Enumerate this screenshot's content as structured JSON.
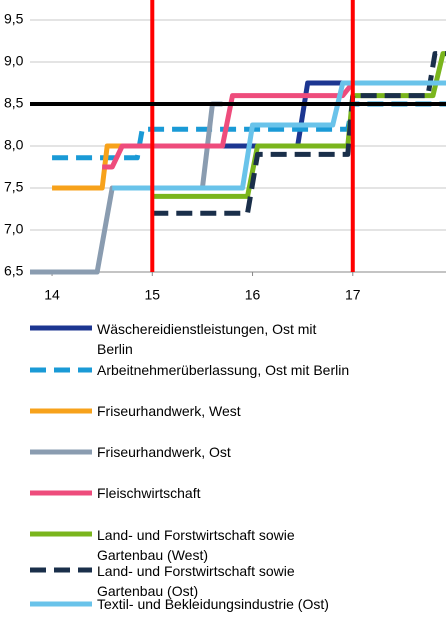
{
  "chart_data": {
    "type": "line",
    "xlim": [
      13.78,
      17.93
    ],
    "xticks": [
      14,
      15,
      16,
      17
    ],
    "ylim": [
      6.5,
      9.5
    ],
    "yticks": [
      {
        "value": 6.5,
        "label": "6,5"
      },
      {
        "value": 7.0,
        "label": "7,0"
      },
      {
        "value": 7.5,
        "label": "7,5"
      },
      {
        "value": 8.0,
        "label": "8,0"
      },
      {
        "value": 8.5,
        "label": "8,5"
      },
      {
        "value": 9.0,
        "label": "9,0"
      },
      {
        "value": 9.5,
        "label": "9,5"
      }
    ],
    "grid": true,
    "vlines": [
      15,
      17
    ],
    "vline_color": "#ff0000",
    "hlines": [
      8.5
    ],
    "hline_color": "#000000",
    "series": [
      {
        "name": "Wäschereidienstleistungen, Ost mit Berlin",
        "color": "#1c3691",
        "dashed": false,
        "x": [
          15.0,
          16.45,
          16.55,
          17.93
        ],
        "values": [
          8.0,
          8.0,
          8.75,
          8.75
        ]
      },
      {
        "name": "Arbeitnehmerüberlassung, Ost mit Berlin",
        "color": "#1a9ad6",
        "dashed": true,
        "x": [
          14.0,
          14.85,
          14.9,
          16.95,
          17.0,
          17.93
        ],
        "values": [
          7.86,
          7.86,
          8.2,
          8.2,
          8.5,
          8.5
        ]
      },
      {
        "name": "Friseurhandwerk, West",
        "color": "#f7a21b",
        "dashed": false,
        "x": [
          14.0,
          14.5,
          14.55,
          15.2
        ],
        "values": [
          7.5,
          7.5,
          8.0,
          8.0
        ]
      },
      {
        "name": "Friseurhandwerk, Ost",
        "color": "#8a9cb0",
        "dashed": false,
        "x": [
          13.78,
          14.45,
          14.6,
          15.5,
          15.6,
          15.7
        ],
        "values": [
          6.5,
          6.5,
          7.5,
          7.5,
          8.5,
          8.5
        ]
      },
      {
        "name": "Fleischwirtschaft",
        "color": "#ee4c7c",
        "dashed": false,
        "x": [
          14.5,
          14.6,
          14.7,
          15.7,
          15.8,
          16.9,
          17.0
        ],
        "values": [
          7.75,
          7.75,
          8.0,
          8.0,
          8.6,
          8.6,
          8.75
        ]
      },
      {
        "name": "Land- und Forstwirtschaft sowie Gartenbau (West)",
        "color": "#7ab51d",
        "dashed": false,
        "x": [
          15.0,
          15.95,
          16.05,
          16.95,
          17.0,
          17.8,
          17.9,
          17.93
        ],
        "values": [
          7.4,
          7.4,
          8.0,
          8.0,
          8.6,
          8.6,
          9.1,
          9.1
        ]
      },
      {
        "name": "Land- und Forstwirtschaft sowie Gartenbau (Ost)",
        "color": "#1a2f4a",
        "dashed": true,
        "x": [
          15.0,
          15.95,
          16.05,
          16.95,
          17.0,
          17.75,
          17.82,
          17.93
        ],
        "values": [
          7.2,
          7.2,
          7.9,
          7.9,
          8.6,
          8.6,
          9.1,
          9.1
        ]
      },
      {
        "name": "Textil- und Bekleidungsindustrie (Ost)",
        "color": "#69c3ea",
        "dashed": false,
        "x": [
          14.6,
          15.9,
          16.0,
          16.8,
          16.9,
          17.93
        ],
        "values": [
          7.5,
          7.5,
          8.25,
          8.25,
          8.75,
          8.75
        ]
      }
    ]
  }
}
